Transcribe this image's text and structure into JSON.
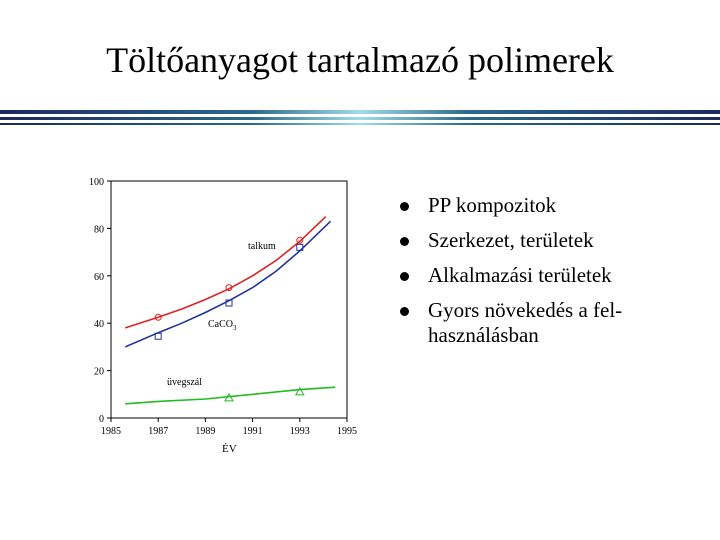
{
  "slide": {
    "title": "Töltőanyagot tartalmazó polimerek",
    "bullets": [
      "PP kompozitok",
      "Szerkezet, területek",
      "Alkalmazási területek",
      "Gyors növekedés a fel-használásban"
    ]
  },
  "chart_data": {
    "type": "line",
    "xlabel": "ÉV",
    "ylabel": "",
    "xlim": [
      1985,
      1995
    ],
    "ylim": [
      0,
      100
    ],
    "x_ticks": [
      "1985",
      "1987",
      "1989",
      "1991",
      "1993",
      "1995"
    ],
    "y_ticks": [
      "0",
      "20",
      "40",
      "60",
      "80",
      "100"
    ],
    "grid": false,
    "series": [
      {
        "name": "talkum",
        "color": "#dd2222",
        "marker": "circle",
        "x": [
          1985.6,
          1987,
          1988,
          1989,
          1990,
          1991,
          1992,
          1993,
          1994.1
        ],
        "y": [
          38,
          42.5,
          46,
          50,
          54.5,
          60,
          66.5,
          74.5,
          85
        ],
        "points": [
          {
            "x": 1987,
            "y": 42.5
          },
          {
            "x": 1990,
            "y": 55
          },
          {
            "x": 1993,
            "y": 75
          }
        ]
      },
      {
        "name": "CaCO3",
        "name_parts": {
          "base": "CaCO",
          "sub": "3"
        },
        "color": "#223399",
        "marker": "square",
        "x": [
          1985.6,
          1987,
          1988,
          1989,
          1990,
          1991,
          1992,
          1993,
          1994.3
        ],
        "y": [
          30,
          36,
          40,
          44.5,
          49.5,
          55,
          62,
          70.5,
          83
        ],
        "points": [
          {
            "x": 1987,
            "y": 34.5
          },
          {
            "x": 1990,
            "y": 48.5
          },
          {
            "x": 1993,
            "y": 72
          }
        ]
      },
      {
        "name": "üvegszál",
        "color": "#22bb22",
        "marker": "triangle",
        "x": [
          1985.6,
          1987,
          1989,
          1991,
          1993,
          1994.5
        ],
        "y": [
          6,
          7,
          8,
          10,
          12,
          13
        ],
        "points": [
          {
            "x": 1990,
            "y": 8.5
          },
          {
            "x": 1993,
            "y": 11
          }
        ]
      }
    ]
  }
}
